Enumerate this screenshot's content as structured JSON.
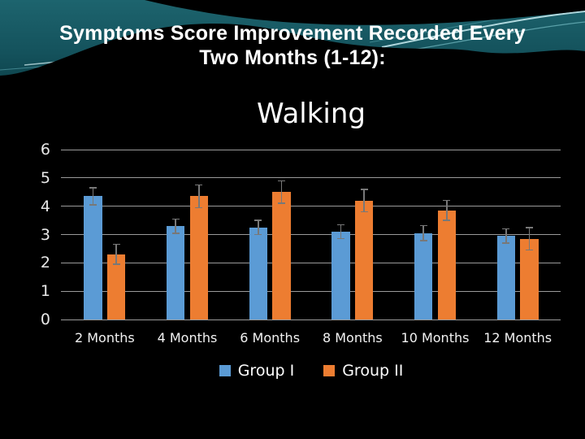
{
  "slide": {
    "title_line1": "Symptoms Score Improvement Recorded Every",
    "title_line2": "Two Months (1-12):"
  },
  "chart_data": {
    "type": "bar",
    "title": "Walking",
    "categories": [
      "2 Months",
      "4 Months",
      "6 Months",
      "8 Months",
      "10 Months",
      "12 Months"
    ],
    "series": [
      {
        "name": "Group I",
        "color": "#5B9BD5",
        "values": [
          4.35,
          3.3,
          3.25,
          3.1,
          3.05,
          2.95
        ],
        "errors": [
          0.3,
          0.25,
          0.25,
          0.25,
          0.27,
          0.25
        ]
      },
      {
        "name": "Group II",
        "color": "#ED7D31",
        "values": [
          2.3,
          4.35,
          4.5,
          4.2,
          3.85,
          2.85
        ],
        "errors": [
          0.35,
          0.4,
          0.4,
          0.4,
          0.35,
          0.4
        ]
      }
    ],
    "xlabel": "",
    "ylabel": "",
    "ylim": [
      0,
      6
    ],
    "ytick_step": 1,
    "yticks": [
      "0",
      "1",
      "2",
      "3",
      "4",
      "5",
      "6"
    ],
    "grid": true,
    "legend_position": "bottom",
    "colors": {
      "plot_background": "#000000",
      "gridline": "#9a9a9a",
      "axis_line": "#9a9a9a",
      "axis_text": "#e8e8e8",
      "error_bar": "#787878",
      "title_text": "#ffffff"
    }
  }
}
